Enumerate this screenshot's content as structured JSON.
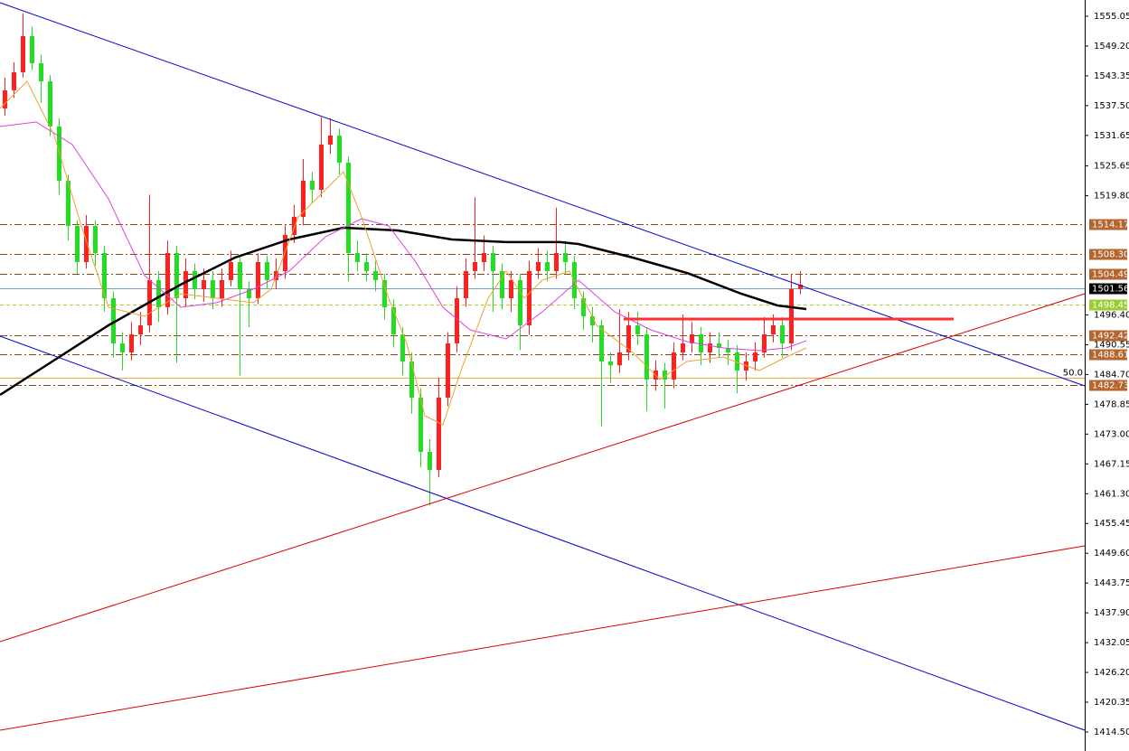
{
  "chart_data": {
    "type": "candlestick",
    "xlim": [
      -0.5,
      119.5
    ],
    "ylim": [
      1410.77,
      1558.24
    ],
    "yticks": [
      1555.05,
      {
        "value": 1549.2,
        "label": "1549.20"
      },
      1543.35,
      {
        "value": 1537.5,
        "label": "1537.50"
      },
      1531.65,
      1525.65,
      {
        "value": 1519.8,
        "label": "1519.80"
      },
      {
        "value": 1496.4,
        "label": "1496.40"
      },
      1490.55,
      {
        "value": 1484.7,
        "label": "1484.70"
      },
      1478.85,
      {
        "value": 1473.0,
        "label": "1473.00"
      },
      1467.15,
      {
        "value": 1461.3,
        "label": "1461.30"
      },
      1455.45,
      {
        "value": 1449.6,
        "label": "1449.60"
      },
      1443.75,
      {
        "value": 1437.9,
        "label": "1437.90"
      },
      1432.05,
      {
        "value": 1426.2,
        "label": "1426.20"
      },
      1420.35,
      {
        "value": 1414.5,
        "label": "1414.50"
      }
    ],
    "up_color": "#ff2020",
    "down_color": "#22dd22",
    "open": [
      1536.95,
      1540.5,
      1544.05,
      1551.15,
      1545.82,
      1542.27,
      1533.4,
      1522.75,
      1513.88,
      1506.78,
      1513.88,
      1508.55,
      1499.68,
      1490.81,
      1489.03,
      1492.58,
      1494.36,
      1503.23,
      1497.91,
      1508.55,
      1499.68,
      1505.01,
      1501.46,
      1503.23,
      1499.68,
      1503.23,
      1506.78,
      1501.46,
      1499.68,
      1506.78,
      1503.23,
      1505.01,
      1512.1,
      1515.65,
      1522.75,
      1520.98,
      1529.85,
      1531.62,
      1526.3,
      1508.55,
      1506.78,
      1505.01,
      1503.23,
      1497.91,
      1492.58,
      1487.26,
      1480.16,
      1469.51,
      1465.96,
      1480.16,
      1490.81,
      1499.68,
      1505.01,
      1506.78,
      1508.55,
      1505.01,
      1499.68,
      1503.23,
      1494.36,
      1505.01,
      1506.78,
      1505.01,
      1508.55,
      1506.78,
      1499.68,
      1496.13,
      1494.36,
      1487.26,
      1486.5,
      1489.03,
      1494.36,
      1492.58,
      1483.71,
      1485.48,
      1483.71,
      1489.03,
      1490.81,
      1492.58,
      1489.03,
      1490.81,
      1489.92,
      1489.03,
      1485.48,
      1487.26,
      1489.03,
      1492.58,
      1494.36,
      1490.81,
      1501.46
    ],
    "high": [
      1543.0,
      1546.0,
      1555.6,
      1553.0,
      1547.5,
      1543.5,
      1535.0,
      1524.0,
      1515.0,
      1516.0,
      1515.0,
      1510.0,
      1501.0,
      1493.0,
      1495.0,
      1497.0,
      1520.0,
      1505.0,
      1511.0,
      1510.0,
      1507.5,
      1506.5,
      1505.5,
      1505.0,
      1505.5,
      1509.0,
      1508.0,
      1503.0,
      1508.5,
      1508.0,
      1507.5,
      1514.0,
      1518.0,
      1527.0,
      1524.5,
      1535.2,
      1535.0,
      1533.0,
      1527.5,
      1511.0,
      1508.5,
      1507.0,
      1504.5,
      1499.5,
      1494.0,
      1489.0,
      1482.0,
      1472.0,
      1484.0,
      1493.0,
      1502.0,
      1507.5,
      1519.5,
      1512.0,
      1510.0,
      1506.5,
      1505.0,
      1504.5,
      1507.0,
      1509.5,
      1509.0,
      1517.5,
      1511.0,
      1508.0,
      1501.0,
      1498.0,
      1495.5,
      1489.0,
      1497.5,
      1497.0,
      1497.0,
      1494.0,
      1487.5,
      1487.0,
      1491.0,
      1496.5,
      1495.0,
      1494.0,
      1493.0,
      1493.0,
      1491.5,
      1490.5,
      1489.0,
      1491.0,
      1496.0,
      1496.5,
      1496.0,
      1504.5,
      1505.0
    ],
    "low": [
      1535.5,
      1539.0,
      1543.0,
      1544.5,
      1538.0,
      1531.5,
      1520.0,
      1511.0,
      1504.5,
      1505.5,
      1506.0,
      1497.0,
      1488.0,
      1485.5,
      1487.5,
      1490.5,
      1493.0,
      1495.0,
      1496.5,
      1487.0,
      1498.0,
      1499.5,
      1499.0,
      1497.5,
      1498.0,
      1502.0,
      1484.5,
      1494.0,
      1498.5,
      1501.5,
      1501.5,
      1503.5,
      1510.5,
      1514.0,
      1518.5,
      1519.5,
      1528.0,
      1524.0,
      1503.0,
      1505.0,
      1503.0,
      1501.0,
      1495.5,
      1490.0,
      1484.5,
      1477.0,
      1466.5,
      1459.0,
      1464.5,
      1478.5,
      1489.0,
      1498.0,
      1503.5,
      1505.0,
      1497.0,
      1497.5,
      1497.0,
      1489.5,
      1492.5,
      1503.5,
      1503.0,
      1503.5,
      1504.5,
      1497.5,
      1493.5,
      1491.0,
      1474.5,
      1483.0,
      1485.0,
      1487.5,
      1490.5,
      1477.5,
      1481.5,
      1478.0,
      1482.0,
      1487.5,
      1489.0,
      1486.5,
      1487.0,
      1488.0,
      1486.5,
      1481.0,
      1483.5,
      1485.5,
      1488.0,
      1491.0,
      1488.0,
      1489.5,
      1500.5
    ],
    "close": [
      1540.5,
      1544.05,
      1551.15,
      1545.82,
      1542.27,
      1533.4,
      1522.75,
      1513.88,
      1506.78,
      1513.88,
      1508.55,
      1499.68,
      1490.81,
      1489.03,
      1492.58,
      1494.36,
      1503.23,
      1497.91,
      1508.55,
      1499.68,
      1505.01,
      1501.46,
      1503.23,
      1499.68,
      1503.23,
      1506.78,
      1501.46,
      1499.68,
      1506.78,
      1503.23,
      1505.01,
      1512.1,
      1515.65,
      1522.75,
      1520.98,
      1529.85,
      1531.62,
      1526.3,
      1508.55,
      1506.78,
      1505.01,
      1503.23,
      1497.91,
      1492.58,
      1487.26,
      1480.16,
      1469.51,
      1465.96,
      1480.16,
      1490.81,
      1499.68,
      1505.01,
      1506.78,
      1508.55,
      1505.01,
      1499.68,
      1503.23,
      1494.36,
      1505.01,
      1506.78,
      1505.01,
      1508.55,
      1506.78,
      1499.68,
      1496.13,
      1494.36,
      1487.26,
      1486.5,
      1489.03,
      1494.36,
      1492.58,
      1483.71,
      1485.48,
      1483.71,
      1489.03,
      1490.81,
      1492.58,
      1489.03,
      1490.81,
      1489.92,
      1489.03,
      1485.48,
      1487.26,
      1489.03,
      1492.58,
      1494.36,
      1490.81,
      1501.46,
      1502.34
    ],
    "levels": [
      {
        "price": 1514.17,
        "color": "#8b4513",
        "box": "#b5652e",
        "dash": "8 3 2 3"
      },
      {
        "price": {
          "value": 1508.3,
          "label": "1508.30"
        },
        "color": "#8b4513",
        "box": "#b5652e",
        "dash": "8 3 2 3"
      },
      {
        "price": 1504.49,
        "color": "#8b4513",
        "box": "#b5652e",
        "dash": "8 3 2 3"
      },
      {
        "price": 1501.56,
        "color": "#7a9cc0",
        "box": "#000000",
        "dash": "none"
      },
      {
        "price": 1498.45,
        "color": "#b8c830",
        "box": "#9acd32",
        "dash": "4 3"
      },
      {
        "price": 1492.42,
        "color": "#8b4513",
        "box": "#b5652e",
        "dash": "8 3 2 3"
      },
      {
        "price": 1488.61,
        "color": "#8b4513",
        "box": "#b5652e",
        "dash": "8 3 2 3"
      },
      {
        "price": 1482.73,
        "color": "#8b4513",
        "box": "#b5652e",
        "dash": "8 3 2 3"
      }
    ],
    "fib": {
      "price": 1484.0,
      "color": "#f0a030",
      "label": "50.0"
    },
    "averages": [
      {
        "color": "#000000",
        "width": 2.5,
        "x": [
          -0.5,
          4.5,
          11.5,
          19.5,
          25.5,
          31.5,
          37.5,
          43.5,
          49.5,
          55.5,
          61.5,
          63.5,
          69.5,
          75.5,
          81.5,
          85.5,
          88.7
        ],
        "values": [
          1480.69,
          1486.37,
          1494.36,
          1502.35,
          1507.67,
          1511.22,
          1513.52,
          1512.99,
          1511.22,
          1510.69,
          1510.69,
          1510.33,
          1507.67,
          1504.65,
          1500.57,
          1498.26,
          1497.55
        ]
      },
      {
        "color": "#e040e0",
        "width": 1,
        "x": [
          -0.5,
          3.5,
          7.5,
          11.5,
          15.5,
          19.5,
          23.5,
          27.5,
          31.5,
          35.5,
          39.5,
          42.5,
          45.5,
          48.5,
          51.5,
          55.5,
          59.5,
          63.5,
          67.5,
          71.5,
          75.5,
          79.5,
          83.5,
          86.5,
          88.7
        ],
        "values": [
          1533.4,
          1534.29,
          1529.85,
          1519.2,
          1504.12,
          1497.91,
          1498.8,
          1501.46,
          1505.01,
          1511.75,
          1515.3,
          1513.88,
          1506.78,
          1497.91,
          1493.47,
          1491.7,
          1497.02,
          1503.23,
          1497.02,
          1493.47,
          1491.16,
          1489.92,
          1489.39,
          1489.92,
          1491.34
        ]
      },
      {
        "color": "#f0a030",
        "width": 1,
        "x": [
          -0.5,
          2.5,
          5.5,
          8.5,
          11.5,
          15.5,
          19.5,
          23.5,
          27.5,
          29.5,
          32.5,
          35.5,
          37.5,
          39.5,
          42.5,
          44.5,
          46.5,
          48.5,
          50.5,
          53.5,
          55.5,
          57.5,
          59.5,
          62.5,
          65.5,
          69.5,
          72.5,
          75.5,
          79.5,
          83.5,
          86.5,
          88.7
        ],
        "values": [
          1536.95,
          1542.27,
          1531.62,
          1513.88,
          1497.91,
          1496.13,
          1500.57,
          1499.68,
          1498.8,
          1501.46,
          1515.65,
          1520.98,
          1524.53,
          1515.65,
          1499.68,
          1490.81,
          1476.61,
          1474.84,
          1485.49,
          1499.68,
          1505.01,
          1499.68,
          1503.23,
          1505.01,
          1494.36,
          1489.03,
          1483.71,
          1487.26,
          1488.15,
          1485.49,
          1488.15,
          1489.92
        ]
      }
    ],
    "trendlines": [
      {
        "color": "#0000cc",
        "width": 1,
        "x": [
          -0.5,
          119.5
        ],
        "values": [
          1557.7,
          1482.47
        ]
      },
      {
        "color": "#0000cc",
        "width": 1,
        "x": [
          -0.5,
          119.5
        ],
        "values": [
          1492.23,
          1414.86
        ]
      },
      {
        "color": "#dd0000",
        "width": 1,
        "x": [
          -0.5,
          119.5
        ],
        "values": [
          1432.25,
          1500.57
        ]
      },
      {
        "color": "#dd0000",
        "width": 1,
        "x": [
          -0.5,
          119.5
        ],
        "values": [
          1414.86,
          1451.05
        ]
      },
      {
        "color": "#ff3030",
        "width": 3,
        "x": [
          68.5,
          105
        ],
        "values": [
          1495.6,
          1495.6
        ]
      }
    ]
  }
}
